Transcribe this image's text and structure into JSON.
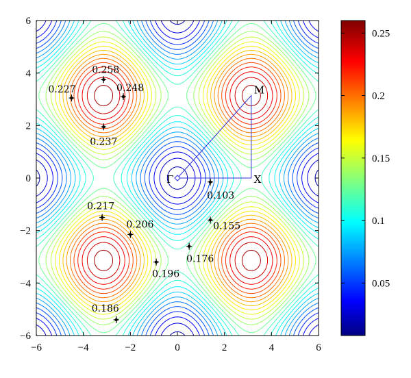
{
  "chart_data": {
    "type": "contour",
    "title": "",
    "xlabel": "",
    "ylabel": "",
    "xlim": [
      -6,
      6
    ],
    "ylim": [
      -6,
      6
    ],
    "x_ticks": [
      "−6",
      "−4",
      "−2",
      "0",
      "2",
      "4",
      "6"
    ],
    "y_ticks": [
      "6",
      "4",
      "2",
      "0",
      "−2",
      "−4",
      "−6"
    ],
    "function": "periodic pair potential 0.13 - 0.06*(cos x + cos y) + 0.005*cos x*cos y",
    "levels": {
      "min": 0.01,
      "max": 0.26,
      "count": 26
    },
    "grid": false,
    "colorbar": {
      "ticks": [
        "0.25",
        "0.2",
        "0.15",
        "0.1",
        "0.05"
      ],
      "tick_values": [
        0.25,
        0.2,
        0.15,
        0.1,
        0.05
      ],
      "range": [
        0.008,
        0.26
      ],
      "colormap": "jet"
    },
    "annotations": [
      {
        "label": "0.258",
        "x": -3.14,
        "y": 3.75
      },
      {
        "label": "0.227",
        "x": -4.5,
        "y": 3.05
      },
      {
        "label": "0.248",
        "x": -2.3,
        "y": 3.1
      },
      {
        "label": "0.237",
        "x": -3.14,
        "y": 1.95
      },
      {
        "label": "0.217",
        "x": -3.2,
        "y": -1.5
      },
      {
        "label": "0.206",
        "x": -2.0,
        "y": -2.15
      },
      {
        "label": "0.196",
        "x": -0.9,
        "y": -3.2
      },
      {
        "label": "0.186",
        "x": -2.6,
        "y": -5.4
      },
      {
        "label": "0.176",
        "x": 0.5,
        "y": -2.6
      },
      {
        "label": "0.155",
        "x": 1.4,
        "y": -1.6
      },
      {
        "label": "0.103",
        "x": 1.4,
        "y": -0.15
      }
    ],
    "path": {
      "color": "#2b2bd6",
      "points": [
        {
          "label": "Γ",
          "x": 0,
          "y": 0
        },
        {
          "label": "X",
          "x": 3.14,
          "y": 0
        },
        {
          "label": "M",
          "x": 3.14,
          "y": 3.14
        }
      ]
    }
  }
}
